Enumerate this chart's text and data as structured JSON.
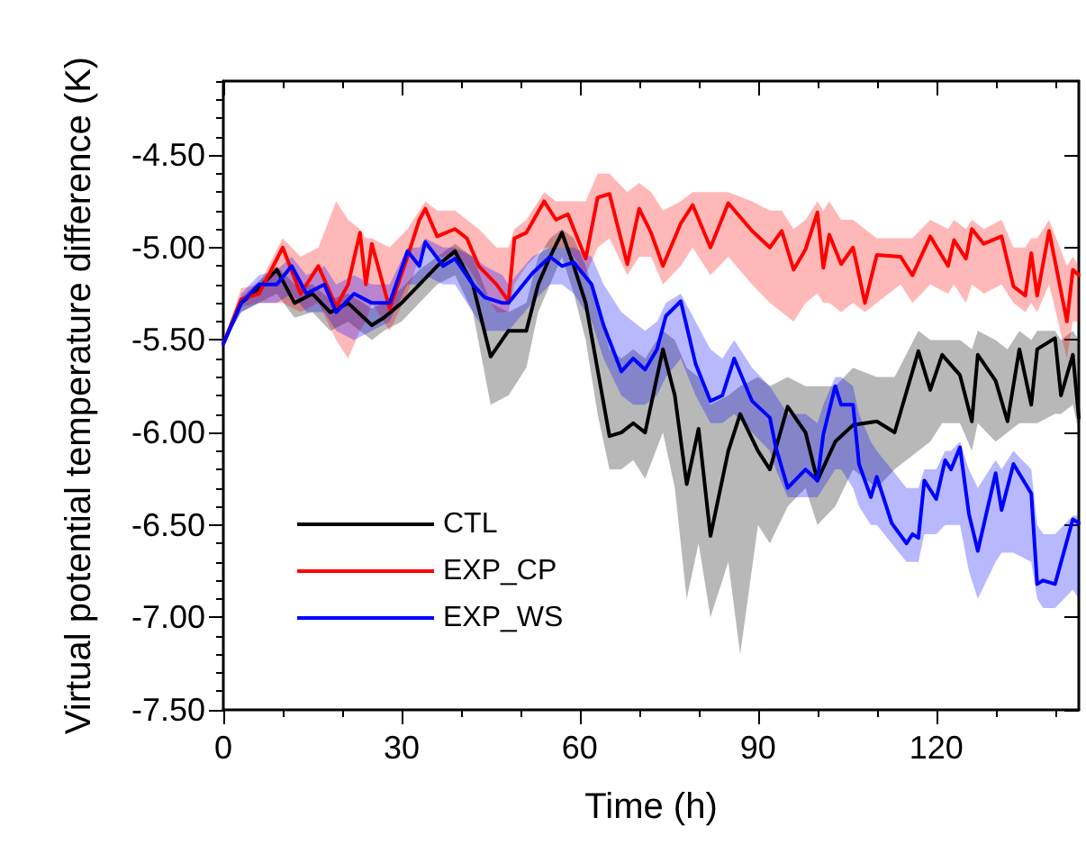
{
  "chart_data": {
    "type": "line",
    "xlabel": "Time (h)",
    "ylabel": "Virtual potential temperature difference (K)",
    "xlim": [
      0,
      144
    ],
    "xticks": [
      0,
      30,
      60,
      90,
      120
    ],
    "ylim": [
      -7.5,
      -4.1
    ],
    "yticks": [
      {
        "value": -7.5,
        "label": "-7.50"
      },
      {
        "value": -7,
        "label": "-7.00"
      },
      {
        "value": -6.5,
        "label": "-6.50"
      },
      {
        "value": -6,
        "label": "-6.00"
      },
      {
        "value": -5.5,
        "label": "-5.50"
      },
      {
        "value": -5,
        "label": "-5.00"
      },
      {
        "value": -4.5,
        "label": "-4.50"
      }
    ],
    "grid": false,
    "legend": "bottom left",
    "marker": "none",
    "line_style": "solid",
    "series": [
      {
        "name": "CTL",
        "color": "#000000",
        "x": [
          0,
          3,
          6,
          9,
          12,
          15,
          18,
          21,
          25,
          27,
          30,
          33,
          36,
          39,
          42,
          45,
          48,
          51,
          53,
          55,
          57,
          59,
          61,
          63,
          65,
          67,
          69,
          71,
          74,
          76,
          78,
          80,
          82,
          85,
          87,
          90,
          92,
          95,
          98,
          100,
          103,
          106,
          110,
          113,
          117,
          119,
          121,
          124,
          126,
          127,
          130,
          132,
          134,
          136,
          137,
          140,
          141,
          143,
          144
        ],
        "values": [
          -5.52,
          -5.3,
          -5.22,
          -5.12,
          -5.3,
          -5.25,
          -5.35,
          -5.3,
          -5.42,
          -5.38,
          -5.3,
          -5.2,
          -5.1,
          -5.02,
          -5.2,
          -5.59,
          -5.45,
          -5.45,
          -5.2,
          -5.05,
          -4.92,
          -5.1,
          -5.3,
          -5.66,
          -6.02,
          -6.0,
          -5.95,
          -6.0,
          -5.55,
          -5.8,
          -6.28,
          -5.98,
          -6.56,
          -6.1,
          -5.9,
          -6.1,
          -6.2,
          -5.86,
          -6.0,
          -6.26,
          -6.05,
          -5.96,
          -5.94,
          -6.0,
          -5.56,
          -5.77,
          -5.58,
          -5.69,
          -5.94,
          -5.58,
          -5.72,
          -5.94,
          -5.55,
          -5.85,
          -5.55,
          -5.49,
          -5.8,
          -5.58,
          -5.92
        ],
        "lower": [
          -5.52,
          -5.35,
          -5.3,
          -5.25,
          -5.38,
          -5.35,
          -5.45,
          -5.4,
          -5.5,
          -5.45,
          -5.4,
          -5.3,
          -5.2,
          -5.15,
          -5.35,
          -5.85,
          -5.8,
          -5.65,
          -5.35,
          -5.2,
          -5.05,
          -5.25,
          -5.5,
          -5.9,
          -6.2,
          -6.2,
          -6.15,
          -6.25,
          -6.0,
          -6.3,
          -6.9,
          -6.6,
          -7.0,
          -6.7,
          -7.2,
          -6.5,
          -6.6,
          -6.4,
          -6.3,
          -6.5,
          -6.4,
          -6.2,
          -6.3,
          -6.2,
          -6.1,
          -6.05,
          -5.95,
          -5.95,
          -6.1,
          -5.95,
          -6.05,
          -6.0,
          -5.95,
          -5.95,
          -5.95,
          -5.9,
          -5.9,
          -5.85,
          -6.0
        ],
        "upper": [
          -5.52,
          -5.27,
          -5.18,
          -5.1,
          -5.2,
          -5.2,
          -5.28,
          -5.25,
          -5.33,
          -5.3,
          -5.22,
          -5.12,
          -5.05,
          -4.98,
          -5.05,
          -5.3,
          -5.35,
          -5.3,
          -5.05,
          -4.95,
          -4.9,
          -4.95,
          -5.1,
          -5.3,
          -5.55,
          -5.6,
          -5.55,
          -5.6,
          -5.45,
          -5.5,
          -5.65,
          -5.7,
          -5.85,
          -5.8,
          -5.75,
          -5.7,
          -5.75,
          -5.7,
          -5.75,
          -5.75,
          -5.75,
          -5.65,
          -5.7,
          -5.7,
          -5.45,
          -5.5,
          -5.5,
          -5.5,
          -5.55,
          -5.45,
          -5.5,
          -5.55,
          -5.45,
          -5.5,
          -5.45,
          -5.45,
          -5.5,
          -5.45,
          -5.5
        ]
      },
      {
        "name": "EXP_CP",
        "color": "#ff0000",
        "x": [
          0,
          3,
          6,
          10,
          13,
          16,
          19,
          21,
          23,
          24,
          25,
          28,
          31,
          33,
          34,
          36,
          39,
          41,
          43,
          46,
          48,
          49,
          51,
          54,
          56,
          58,
          61,
          63,
          65,
          68,
          70,
          72,
          74,
          77,
          79,
          82,
          85,
          89,
          92,
          94,
          96,
          98,
          100,
          101,
          102,
          104,
          106,
          108,
          110,
          114,
          116,
          119,
          122,
          123,
          125,
          126,
          128,
          131,
          133,
          135,
          136,
          137,
          139,
          142,
          143,
          144
        ],
        "values": [
          -5.52,
          -5.28,
          -5.25,
          -5.0,
          -5.25,
          -5.1,
          -5.32,
          -5.2,
          -4.92,
          -5.2,
          -4.98,
          -5.33,
          -5.05,
          -4.85,
          -4.79,
          -4.94,
          -4.9,
          -4.95,
          -5.1,
          -5.2,
          -5.29,
          -4.95,
          -4.92,
          -4.75,
          -4.85,
          -4.82,
          -5.06,
          -4.73,
          -4.71,
          -5.09,
          -4.79,
          -4.92,
          -5.1,
          -4.87,
          -4.77,
          -5.0,
          -4.76,
          -4.91,
          -5.0,
          -4.91,
          -5.12,
          -5.01,
          -4.81,
          -5.11,
          -4.93,
          -5.09,
          -5.0,
          -5.3,
          -5.04,
          -5.05,
          -5.15,
          -4.94,
          -5.1,
          -4.96,
          -5.06,
          -4.9,
          -4.98,
          -4.94,
          -5.21,
          -5.26,
          -5.03,
          -5.26,
          -4.91,
          -5.4,
          -5.12,
          -5.15
        ],
        "lower": [
          -5.52,
          -5.32,
          -5.3,
          -5.3,
          -5.35,
          -5.3,
          -5.5,
          -5.6,
          -5.45,
          -5.4,
          -5.3,
          -5.45,
          -5.25,
          -5.05,
          -5.0,
          -5.05,
          -5.05,
          -5.1,
          -5.2,
          -5.35,
          -5.35,
          -5.2,
          -5.1,
          -5.0,
          -5.0,
          -5.0,
          -5.15,
          -5.0,
          -4.95,
          -5.15,
          -5.05,
          -5.05,
          -5.2,
          -5.1,
          -5.0,
          -5.15,
          -5.05,
          -5.2,
          -5.3,
          -5.35,
          -5.4,
          -5.3,
          -5.25,
          -5.3,
          -5.3,
          -5.35,
          -5.3,
          -5.35,
          -5.3,
          -5.2,
          -5.3,
          -5.2,
          -5.25,
          -5.2,
          -5.3,
          -5.2,
          -5.25,
          -5.2,
          -5.3,
          -5.35,
          -5.3,
          -5.35,
          -5.2,
          -5.6,
          -5.4,
          -5.4
        ],
        "upper": [
          -5.52,
          -5.22,
          -5.2,
          -4.95,
          -5.05,
          -5.0,
          -4.75,
          -4.85,
          -4.9,
          -4.95,
          -4.95,
          -5.0,
          -4.9,
          -4.8,
          -4.75,
          -4.8,
          -4.8,
          -4.85,
          -4.9,
          -5.0,
          -5.0,
          -4.9,
          -4.85,
          -4.7,
          -4.75,
          -4.75,
          -4.75,
          -4.6,
          -4.6,
          -4.7,
          -4.65,
          -4.7,
          -4.8,
          -4.75,
          -4.7,
          -4.7,
          -4.7,
          -4.75,
          -4.8,
          -4.8,
          -4.9,
          -4.85,
          -4.75,
          -4.8,
          -4.75,
          -4.85,
          -4.85,
          -4.9,
          -4.95,
          -4.95,
          -4.95,
          -4.85,
          -4.9,
          -4.85,
          -4.9,
          -4.85,
          -4.9,
          -4.85,
          -5.0,
          -5.0,
          -4.95,
          -4.95,
          -4.85,
          -5.1,
          -5.05,
          -5.1
        ]
      },
      {
        "name": "EXP_WS",
        "color": "#0000ff",
        "x": [
          0,
          3,
          6,
          9,
          11.5,
          14,
          17,
          19,
          22,
          25,
          28,
          31,
          33,
          34,
          37,
          39,
          42,
          44,
          47,
          48,
          52,
          55,
          57,
          59,
          62,
          64,
          67,
          69,
          71,
          73,
          74.5,
          77,
          79.5,
          82,
          84,
          86,
          89,
          92,
          93,
          95,
          98,
          100,
          101,
          103,
          104,
          106,
          107,
          109,
          110,
          112.5,
          115,
          116,
          117,
          118,
          120,
          121.5,
          122.5,
          124,
          125.5,
          127,
          130,
          131,
          133,
          136,
          137,
          138,
          140,
          143,
          144
        ],
        "values": [
          -5.52,
          -5.3,
          -5.2,
          -5.2,
          -5.1,
          -5.25,
          -5.2,
          -5.35,
          -5.25,
          -5.3,
          -5.3,
          -5.02,
          -5.1,
          -4.97,
          -5.1,
          -5.06,
          -5.2,
          -5.27,
          -5.3,
          -5.3,
          -5.14,
          -5.05,
          -5.1,
          -5.08,
          -5.2,
          -5.42,
          -5.67,
          -5.6,
          -5.66,
          -5.55,
          -5.37,
          -5.29,
          -5.63,
          -5.83,
          -5.8,
          -5.6,
          -5.83,
          -5.92,
          -6.08,
          -6.3,
          -6.2,
          -6.26,
          -6.01,
          -5.75,
          -5.85,
          -5.85,
          -6.17,
          -6.35,
          -6.24,
          -6.49,
          -6.6,
          -6.55,
          -6.57,
          -6.26,
          -6.36,
          -6.15,
          -6.2,
          -6.08,
          -6.44,
          -6.64,
          -6.22,
          -6.42,
          -6.17,
          -6.33,
          -6.82,
          -6.8,
          -6.82,
          -6.47,
          -6.49
        ],
        "lower": [
          -5.52,
          -5.35,
          -5.3,
          -5.3,
          -5.25,
          -5.35,
          -5.35,
          -5.45,
          -5.5,
          -5.45,
          -5.4,
          -5.2,
          -5.2,
          -5.15,
          -5.2,
          -5.2,
          -5.35,
          -5.45,
          -5.45,
          -5.45,
          -5.3,
          -5.2,
          -5.2,
          -5.25,
          -5.4,
          -5.6,
          -5.8,
          -5.85,
          -5.85,
          -5.8,
          -5.7,
          -5.6,
          -5.8,
          -5.95,
          -5.95,
          -5.9,
          -6.0,
          -6.1,
          -6.2,
          -6.35,
          -6.35,
          -6.35,
          -6.3,
          -6.2,
          -6.2,
          -6.3,
          -6.4,
          -6.5,
          -6.5,
          -6.6,
          -6.7,
          -6.7,
          -6.7,
          -6.55,
          -6.55,
          -6.5,
          -6.5,
          -6.5,
          -6.75,
          -6.9,
          -6.7,
          -6.65,
          -6.65,
          -6.7,
          -6.9,
          -6.95,
          -6.95,
          -6.85,
          -6.9
        ],
        "upper": [
          -5.52,
          -5.25,
          -5.15,
          -5.12,
          -5.05,
          -5.15,
          -5.1,
          -5.2,
          -5.15,
          -5.2,
          -5.2,
          -5.0,
          -5.0,
          -4.95,
          -5.0,
          -5.0,
          -5.05,
          -5.1,
          -5.15,
          -5.2,
          -5.05,
          -5.0,
          -5.0,
          -5.0,
          -5.05,
          -5.2,
          -5.35,
          -5.4,
          -5.45,
          -5.4,
          -5.3,
          -5.25,
          -5.4,
          -5.55,
          -5.6,
          -5.5,
          -5.65,
          -5.75,
          -5.8,
          -5.9,
          -5.9,
          -5.95,
          -5.85,
          -5.7,
          -5.7,
          -5.75,
          -5.9,
          -6.05,
          -6.1,
          -6.2,
          -6.3,
          -6.3,
          -6.3,
          -6.2,
          -6.2,
          -6.1,
          -6.1,
          -6.05,
          -6.2,
          -6.3,
          -6.15,
          -6.2,
          -6.1,
          -6.2,
          -6.5,
          -6.55,
          -6.55,
          -6.45,
          -6.45
        ]
      }
    ]
  }
}
